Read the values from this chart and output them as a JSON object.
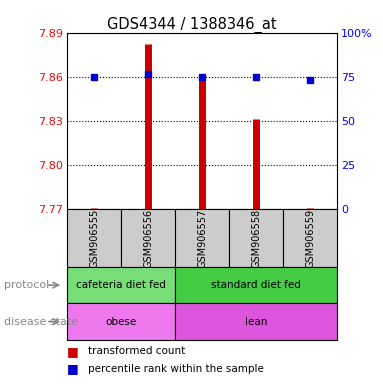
{
  "title": "GDS4344 / 1388346_at",
  "samples": [
    "GSM906555",
    "GSM906556",
    "GSM906557",
    "GSM906558",
    "GSM906559"
  ],
  "transformed_counts": [
    7.771,
    7.882,
    7.86,
    7.831,
    7.771
  ],
  "percentile_y": [
    7.86,
    7.862,
    7.86,
    7.86,
    7.858
  ],
  "ylim": [
    7.77,
    7.89
  ],
  "yticks_left": [
    7.77,
    7.8,
    7.83,
    7.86,
    7.89
  ],
  "yticks_right_labels": [
    "0",
    "25",
    "50",
    "75",
    "100%"
  ],
  "yticks_right_vals": [
    0,
    25,
    50,
    75,
    100
  ],
  "bar_color": "#cc0000",
  "dot_color": "#0000cc",
  "bar_bottom": 7.77,
  "protocol_groups": [
    {
      "label": "cafeteria diet fed",
      "start": 0,
      "end": 2,
      "color": "#77dd77"
    },
    {
      "label": "standard diet fed",
      "start": 2,
      "end": 5,
      "color": "#44cc44"
    }
  ],
  "disease_groups": [
    {
      "label": "obese",
      "start": 0,
      "end": 2,
      "color": "#ee77ee"
    },
    {
      "label": "lean",
      "start": 2,
      "end": 5,
      "color": "#dd55dd"
    }
  ],
  "protocol_label": "protocol",
  "disease_label": "disease state",
  "legend_red": "transformed count",
  "legend_blue": "percentile rank within the sample"
}
